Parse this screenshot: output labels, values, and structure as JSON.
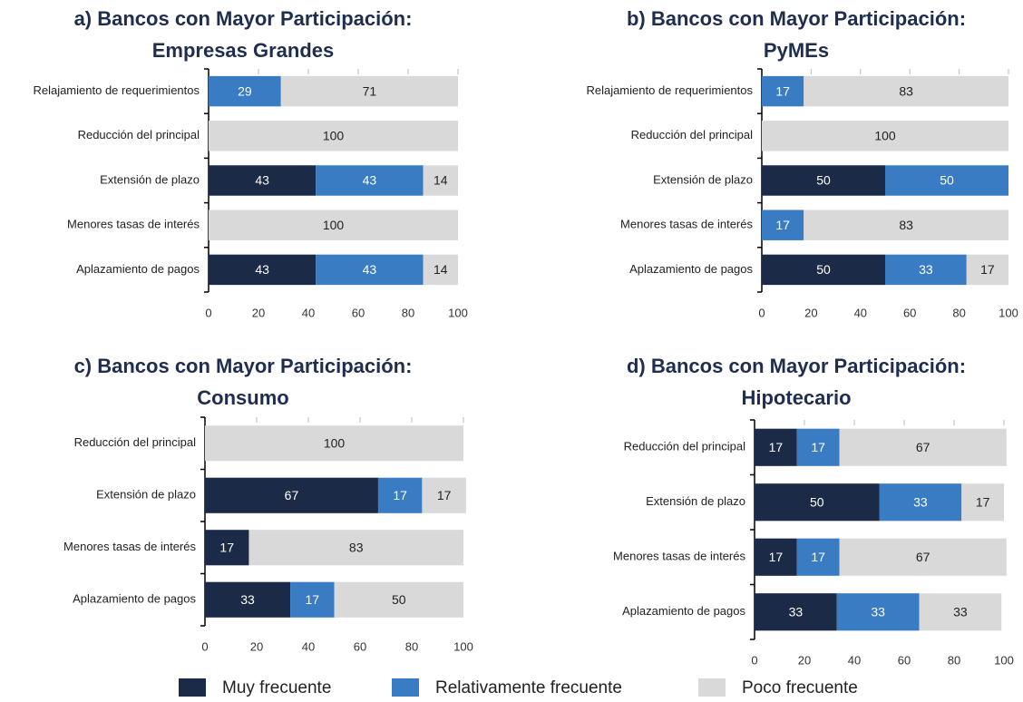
{
  "chart_data": [
    {
      "type": "bar",
      "orientation": "horizontal",
      "stacked": true,
      "title": [
        "a) Bancos con Mayor Participación:",
        "Empresas Grandes"
      ],
      "categories": [
        "Relajamiento de requerimientos",
        "Reducción del principal",
        "Extensión de plazo",
        "Menores tasas de interés",
        "Aplazamiento de pagos"
      ],
      "series": [
        {
          "values": [
            0,
            0,
            43,
            0,
            43
          ]
        },
        {
          "values": [
            29,
            0,
            43,
            0,
            43
          ]
        },
        {
          "values": [
            71,
            100,
            14,
            100,
            14
          ]
        }
      ],
      "xlim": [
        0,
        100
      ],
      "xticks": [
        0,
        20,
        40,
        60,
        80,
        100
      ]
    },
    {
      "type": "bar",
      "orientation": "horizontal",
      "stacked": true,
      "title": [
        "b) Bancos con Mayor Participación:",
        "PyMEs"
      ],
      "categories": [
        "Relajamiento de requerimientos",
        "Reducción del principal",
        "Extensión de plazo",
        "Menores tasas de interés",
        "Aplazamiento de pagos"
      ],
      "series": [
        {
          "values": [
            0,
            0,
            50,
            0,
            50
          ]
        },
        {
          "values": [
            17,
            0,
            50,
            17,
            33
          ]
        },
        {
          "values": [
            83,
            100,
            0,
            83,
            17
          ]
        }
      ],
      "xlim": [
        0,
        100
      ],
      "xticks": [
        0,
        20,
        40,
        60,
        80,
        100
      ]
    },
    {
      "type": "bar",
      "orientation": "horizontal",
      "stacked": true,
      "title": [
        "c) Bancos con Mayor Participación:",
        "Consumo"
      ],
      "categories": [
        "Reducción del principal",
        "Extensión de plazo",
        "Menores tasas de interés",
        "Aplazamiento de pagos"
      ],
      "series": [
        {
          "values": [
            0,
            67,
            17,
            33
          ]
        },
        {
          "values": [
            0,
            17,
            0,
            17
          ]
        },
        {
          "values": [
            100,
            17,
            83,
            50
          ]
        }
      ],
      "xlim": [
        0,
        100
      ],
      "xticks": [
        0,
        20,
        40,
        60,
        80,
        100
      ]
    },
    {
      "type": "bar",
      "orientation": "horizontal",
      "stacked": true,
      "title": [
        "d) Bancos con Mayor Participación:",
        "Hipotecario"
      ],
      "categories": [
        "Reducción del principal",
        "Extensión de plazo",
        "Menores tasas de interés",
        "Aplazamiento de pagos"
      ],
      "series": [
        {
          "values": [
            17,
            50,
            17,
            33
          ]
        },
        {
          "values": [
            17,
            33,
            17,
            33
          ]
        },
        {
          "values": [
            67,
            17,
            67,
            33
          ]
        }
      ],
      "xlim": [
        0,
        100
      ],
      "xticks": [
        0,
        20,
        40,
        60,
        80,
        100
      ]
    }
  ],
  "legend": [
    {
      "name": "Muy frecuente",
      "color": "#1b2a47"
    },
    {
      "name": "Relativamente frecuente",
      "color": "#3a7cc4"
    },
    {
      "name": "Poco frecuente",
      "color": "#d9d9d9"
    }
  ]
}
